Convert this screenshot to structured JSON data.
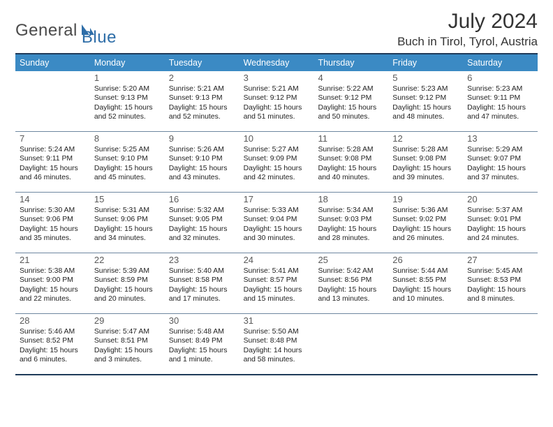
{
  "logo": {
    "word1": "General",
    "word2": "Blue"
  },
  "title": "July 2024",
  "location": "Buch in Tirol, Tyrol, Austria",
  "colors": {
    "header_bg": "#3b8ac4",
    "header_text": "#ffffff",
    "rule_dark": "#1f3b5a",
    "rule_light": "#6e87a0",
    "logo_gray": "#4a4a4a",
    "logo_blue": "#2f6ea8",
    "body_bg": "#ffffff",
    "text": "#222222",
    "daynum": "#5a5a5a"
  },
  "fonts": {
    "title_pt": 30,
    "location_pt": 17,
    "dayhead_pt": 12.5,
    "daynum_pt": 13,
    "body_pt": 10.4
  },
  "day_headers": [
    "Sunday",
    "Monday",
    "Tuesday",
    "Wednesday",
    "Thursday",
    "Friday",
    "Saturday"
  ],
  "weeks": [
    [
      null,
      {
        "n": "1",
        "sr": "5:20 AM",
        "ss": "9:13 PM",
        "dl": "15 hours and 52 minutes."
      },
      {
        "n": "2",
        "sr": "5:21 AM",
        "ss": "9:13 PM",
        "dl": "15 hours and 52 minutes."
      },
      {
        "n": "3",
        "sr": "5:21 AM",
        "ss": "9:12 PM",
        "dl": "15 hours and 51 minutes."
      },
      {
        "n": "4",
        "sr": "5:22 AM",
        "ss": "9:12 PM",
        "dl": "15 hours and 50 minutes."
      },
      {
        "n": "5",
        "sr": "5:23 AM",
        "ss": "9:12 PM",
        "dl": "15 hours and 48 minutes."
      },
      {
        "n": "6",
        "sr": "5:23 AM",
        "ss": "9:11 PM",
        "dl": "15 hours and 47 minutes."
      }
    ],
    [
      {
        "n": "7",
        "sr": "5:24 AM",
        "ss": "9:11 PM",
        "dl": "15 hours and 46 minutes."
      },
      {
        "n": "8",
        "sr": "5:25 AM",
        "ss": "9:10 PM",
        "dl": "15 hours and 45 minutes."
      },
      {
        "n": "9",
        "sr": "5:26 AM",
        "ss": "9:10 PM",
        "dl": "15 hours and 43 minutes."
      },
      {
        "n": "10",
        "sr": "5:27 AM",
        "ss": "9:09 PM",
        "dl": "15 hours and 42 minutes."
      },
      {
        "n": "11",
        "sr": "5:28 AM",
        "ss": "9:08 PM",
        "dl": "15 hours and 40 minutes."
      },
      {
        "n": "12",
        "sr": "5:28 AM",
        "ss": "9:08 PM",
        "dl": "15 hours and 39 minutes."
      },
      {
        "n": "13",
        "sr": "5:29 AM",
        "ss": "9:07 PM",
        "dl": "15 hours and 37 minutes."
      }
    ],
    [
      {
        "n": "14",
        "sr": "5:30 AM",
        "ss": "9:06 PM",
        "dl": "15 hours and 35 minutes."
      },
      {
        "n": "15",
        "sr": "5:31 AM",
        "ss": "9:06 PM",
        "dl": "15 hours and 34 minutes."
      },
      {
        "n": "16",
        "sr": "5:32 AM",
        "ss": "9:05 PM",
        "dl": "15 hours and 32 minutes."
      },
      {
        "n": "17",
        "sr": "5:33 AM",
        "ss": "9:04 PM",
        "dl": "15 hours and 30 minutes."
      },
      {
        "n": "18",
        "sr": "5:34 AM",
        "ss": "9:03 PM",
        "dl": "15 hours and 28 minutes."
      },
      {
        "n": "19",
        "sr": "5:36 AM",
        "ss": "9:02 PM",
        "dl": "15 hours and 26 minutes."
      },
      {
        "n": "20",
        "sr": "5:37 AM",
        "ss": "9:01 PM",
        "dl": "15 hours and 24 minutes."
      }
    ],
    [
      {
        "n": "21",
        "sr": "5:38 AM",
        "ss": "9:00 PM",
        "dl": "15 hours and 22 minutes."
      },
      {
        "n": "22",
        "sr": "5:39 AM",
        "ss": "8:59 PM",
        "dl": "15 hours and 20 minutes."
      },
      {
        "n": "23",
        "sr": "5:40 AM",
        "ss": "8:58 PM",
        "dl": "15 hours and 17 minutes."
      },
      {
        "n": "24",
        "sr": "5:41 AM",
        "ss": "8:57 PM",
        "dl": "15 hours and 15 minutes."
      },
      {
        "n": "25",
        "sr": "5:42 AM",
        "ss": "8:56 PM",
        "dl": "15 hours and 13 minutes."
      },
      {
        "n": "26",
        "sr": "5:44 AM",
        "ss": "8:55 PM",
        "dl": "15 hours and 10 minutes."
      },
      {
        "n": "27",
        "sr": "5:45 AM",
        "ss": "8:53 PM",
        "dl": "15 hours and 8 minutes."
      }
    ],
    [
      {
        "n": "28",
        "sr": "5:46 AM",
        "ss": "8:52 PM",
        "dl": "15 hours and 6 minutes."
      },
      {
        "n": "29",
        "sr": "5:47 AM",
        "ss": "8:51 PM",
        "dl": "15 hours and 3 minutes."
      },
      {
        "n": "30",
        "sr": "5:48 AM",
        "ss": "8:49 PM",
        "dl": "15 hours and 1 minute."
      },
      {
        "n": "31",
        "sr": "5:50 AM",
        "ss": "8:48 PM",
        "dl": "14 hours and 58 minutes."
      },
      null,
      null,
      null
    ]
  ],
  "labels": {
    "sunrise": "Sunrise:",
    "sunset": "Sunset:",
    "daylight": "Daylight:"
  }
}
